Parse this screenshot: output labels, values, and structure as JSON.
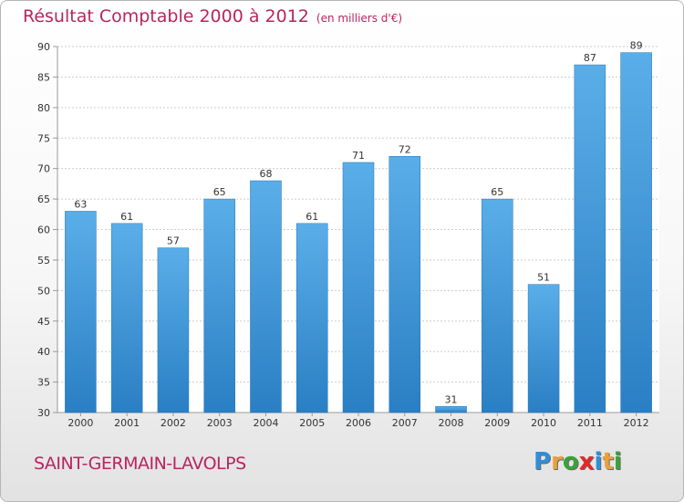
{
  "header": {
    "title": "Résultat Comptable 2000 à 2012",
    "subtitle": "(en milliers d'€)"
  },
  "footer": {
    "commune": "SAINT-GERMAIN-LAVOLPS",
    "logo_letters": [
      "P",
      "r",
      "o",
      "x",
      "i",
      "t",
      "i"
    ],
    "logo_colors": [
      "#2f8fd8",
      "#e8a13c",
      "#3aa23a",
      "#e02a2a",
      "#2f8fd8",
      "#e8a13c",
      "#3aa23a"
    ]
  },
  "chart_data": {
    "type": "bar",
    "categories": [
      "2000",
      "2001",
      "2002",
      "2003",
      "2004",
      "2005",
      "2006",
      "2007",
      "2008",
      "2009",
      "2010",
      "2011",
      "2012"
    ],
    "values": [
      63,
      61,
      57,
      65,
      68,
      61,
      71,
      72,
      31,
      65,
      51,
      87,
      89
    ],
    "ylim": [
      30,
      90
    ],
    "yticks": [
      30,
      35,
      40,
      45,
      50,
      55,
      60,
      65,
      70,
      75,
      80,
      85,
      90
    ],
    "grid": true,
    "colors": {
      "bar_light": "#5aaee8",
      "bar_dark": "#2a7fc4",
      "grid": "#cccccc",
      "axis": "#999999"
    }
  }
}
